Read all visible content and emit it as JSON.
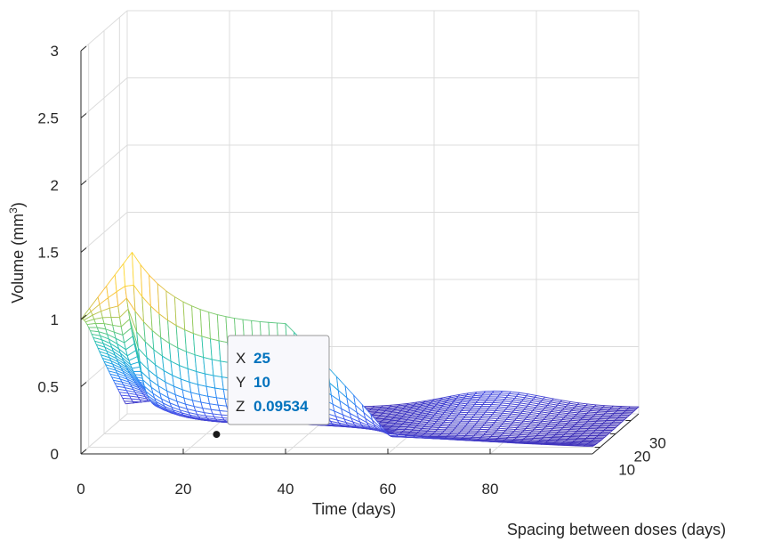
{
  "chart_data": {
    "type": "surface",
    "title": "",
    "xlabel": "Time (days)",
    "ylabel": "Spacing between doses (days)",
    "zlabel_main": "Volume (mm",
    "zlabel_sup": "3",
    "zlabel_close": ")",
    "xlim": [
      0,
      100
    ],
    "ylim": [
      5,
      35
    ],
    "zlim": [
      0,
      3
    ],
    "x_ticks": [
      0,
      20,
      40,
      60,
      80
    ],
    "x_tick_labels": [
      "0",
      "20",
      "40",
      "60",
      "80"
    ],
    "y_ticks": [
      10,
      20,
      30
    ],
    "y_tick_labels": [
      "10",
      "20",
      "30"
    ],
    "z_ticks": [
      0,
      0.5,
      1,
      1.5,
      2,
      2.5,
      3
    ],
    "z_tick_labels": [
      "0",
      "0.5",
      "1",
      "1.5",
      "2",
      "2.5",
      "3"
    ],
    "grid": true,
    "colormap": [
      "#3e26a8",
      "#4755ea",
      "#2e87f7",
      "#1cacdb",
      "#2ec4a9",
      "#8ccc61",
      "#f9bd3b",
      "#fcda38",
      "#f9fb14"
    ],
    "mesh_edges_colored": true,
    "face_color": "#ffffff",
    "surface_samples": [
      {
        "x": 0,
        "y": 5,
        "z": 1.0
      },
      {
        "x": 10,
        "y": 5,
        "z": 1.5
      },
      {
        "x": 10,
        "y": 10,
        "z": 0.05
      },
      {
        "x": 25,
        "y": 10,
        "z": 0.09534
      },
      {
        "x": 40,
        "y": 5,
        "z": 0.95
      },
      {
        "x": 100,
        "y": 35,
        "z": 0.03
      }
    ],
    "datatip": {
      "x_key": "X",
      "x_value": "25",
      "y_key": "Y",
      "y_value": "10",
      "z_key": "Z",
      "z_value": "0.09534",
      "point": {
        "x": 25,
        "y": 10,
        "z": 0.09534
      },
      "value_color": "#0072bd"
    }
  }
}
